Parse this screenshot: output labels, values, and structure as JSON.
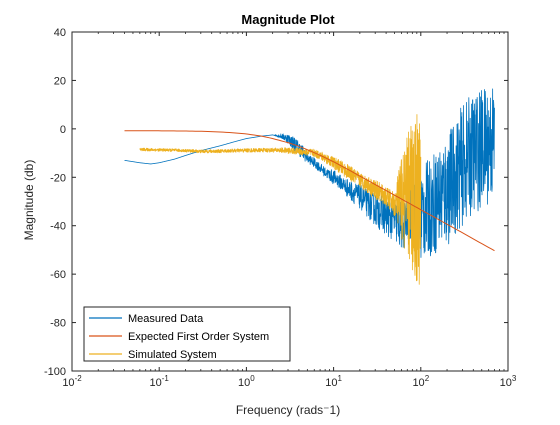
{
  "chart_data": {
    "type": "line",
    "title": "Magnitude Plot",
    "xlabel": "Frequency (rads⁻1)",
    "ylabel": "Magnitude (db)",
    "xscale": "log",
    "xlim": [
      0.01,
      1000
    ],
    "ylim": [
      -100,
      40
    ],
    "xticks": [
      {
        "value": 0.01,
        "base": "10",
        "exp": "-2"
      },
      {
        "value": 0.1,
        "base": "10",
        "exp": "-1"
      },
      {
        "value": 1,
        "base": "10",
        "exp": "0"
      },
      {
        "value": 10,
        "base": "10",
        "exp": "1"
      },
      {
        "value": 100,
        "base": "10",
        "exp": "2"
      },
      {
        "value": 1000,
        "base": "10",
        "exp": "3"
      }
    ],
    "yticks": [
      {
        "value": -100,
        "label": "-100"
      },
      {
        "value": -80,
        "label": "-80"
      },
      {
        "value": -60,
        "label": "-60"
      },
      {
        "value": -40,
        "label": "-40"
      },
      {
        "value": -20,
        "label": "-20"
      },
      {
        "value": 0,
        "label": "0"
      },
      {
        "value": 20,
        "label": "20"
      },
      {
        "value": 40,
        "label": "40"
      }
    ],
    "grid": false,
    "legend": {
      "position": "bottom-left"
    },
    "series": [
      {
        "name": "Measured Data",
        "color": "#0072BD",
        "x": [
          0.04,
          0.06,
          0.08,
          0.1,
          0.15,
          0.2,
          0.3,
          0.5,
          0.7,
          1.0,
          1.5,
          2.0,
          2.5,
          3.0,
          3.5,
          4.0,
          4.5,
          5.0,
          6.0,
          7.0,
          8.0,
          10,
          12,
          15,
          20,
          25,
          30,
          40,
          50,
          60,
          70,
          80,
          90,
          100,
          120,
          150,
          200,
          250,
          300,
          400,
          500,
          600,
          700
        ],
        "y": [
          -13,
          -14,
          -14.5,
          -14,
          -12.5,
          -11,
          -9,
          -7,
          -5.5,
          -4,
          -3,
          -2.5,
          -3,
          -4,
          -6,
          -8,
          -10,
          -12,
          -14,
          -16,
          -18,
          -20,
          -22,
          -25,
          -28,
          -31,
          -33,
          -36,
          -38,
          -40,
          -38,
          -30,
          -32,
          -35,
          -33,
          -30,
          -25,
          -20,
          -15,
          -10,
          -8,
          -6,
          -5
        ],
        "noise": [
          0,
          0,
          0,
          0,
          0,
          0,
          0,
          0,
          0,
          0,
          0,
          0,
          1,
          2,
          3,
          3,
          3,
          2,
          2,
          2,
          2,
          3,
          3,
          4,
          5,
          6,
          7,
          8,
          9,
          10,
          12,
          14,
          16,
          20,
          20,
          22,
          24,
          24,
          25,
          25,
          25,
          25,
          25
        ]
      },
      {
        "name": "Expected First Order System",
        "color": "#D95319",
        "x": [
          0.04,
          0.06,
          0.1,
          0.2,
          0.3,
          0.5,
          0.7,
          1.0,
          1.5,
          2.0,
          3.0,
          4.0,
          5.0,
          7.0,
          10,
          15,
          20,
          30,
          50,
          70,
          100,
          150,
          200,
          300,
          500,
          700
        ],
        "y": [
          -0.8,
          -0.8,
          -0.8,
          -0.9,
          -1.0,
          -1.3,
          -1.6,
          -2.1,
          -3.0,
          -4.0,
          -5.7,
          -7.2,
          -8.6,
          -10.9,
          -13.6,
          -17.0,
          -19.5,
          -23.0,
          -27.4,
          -30.3,
          -33.4,
          -36.9,
          -39.4,
          -42.9,
          -47.4,
          -50.3
        ]
      },
      {
        "name": "Simulated System",
        "color": "#EDB120",
        "x": [
          0.06,
          0.08,
          0.1,
          0.15,
          0.2,
          0.3,
          0.5,
          0.7,
          1.0,
          1.5,
          2.0,
          2.5,
          3.0,
          4.0,
          5.0,
          6.0,
          7.0,
          8.0,
          10,
          15,
          20,
          30,
          40,
          50,
          55,
          60,
          65,
          70,
          75,
          80,
          85,
          90,
          95,
          100
        ],
        "y": [
          -8.5,
          -8.6,
          -8.7,
          -8.8,
          -9.0,
          -9.3,
          -9.2,
          -9.0,
          -8.9,
          -8.8,
          -8.8,
          -8.8,
          -9.0,
          -9.3,
          -9.6,
          -10,
          -11,
          -12,
          -14,
          -18,
          -21,
          -25,
          -28,
          -31,
          -30,
          -29,
          -28,
          -28,
          -28,
          -28,
          -28,
          -28,
          -28,
          -29
        ],
        "noise": [
          0.6,
          0.6,
          0.6,
          0.6,
          0.6,
          0.7,
          0.7,
          0.7,
          0.8,
          0.8,
          0.9,
          1.0,
          1.2,
          1.4,
          1.5,
          1.6,
          1.8,
          2.0,
          2.5,
          3,
          3,
          4,
          4,
          5,
          12,
          18,
          22,
          26,
          30,
          34,
          36,
          38,
          38,
          38
        ]
      }
    ]
  }
}
